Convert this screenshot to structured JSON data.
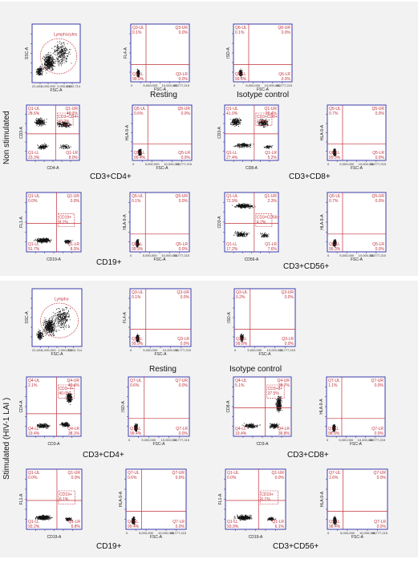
{
  "panels": {
    "top": {
      "side_label": "Non stimulated",
      "captions": [
        "Resting",
        "Isotype control",
        "CD3+CD4+",
        "CD3+CD8+",
        "CD19+",
        "CD3+CD56+"
      ],
      "plots": [
        {
          "xlabel": "FSC-A",
          "ylabel": "SSC-A",
          "gate": "Lymphocytes",
          "quads": [],
          "xticks": [
            "22,404",
            "1,000,000",
            "2,000,000",
            "3,102,714"
          ],
          "cloud": "lymph"
        },
        {
          "xlabel": "FSC-A",
          "ylabel": "FL4-A",
          "quads": [
            "Q3-UL",
            "0.1%",
            "Q3-UR",
            "0.0%",
            "Q3-LL",
            "99.9%",
            "Q3-LR",
            "0.0%"
          ],
          "xticks": [
            "0",
            "5,000,000",
            "10,000,000",
            "16,777,215"
          ],
          "cloud": "blob"
        },
        {
          "xlabel": "FSC-A",
          "ylabel": "ISO-A",
          "quads": [
            "Q6-UL",
            "0.1%",
            "Q6-UR",
            "0.0%",
            "Q6-LL",
            "99.9%",
            "Q6-LR",
            "0.0%"
          ],
          "xticks": [
            "0",
            "5,000,000",
            "10,000,000",
            "16,777,215"
          ],
          "cloud": "blob"
        },
        {
          "xlabel": "CD4-A",
          "ylabel": "CD3-A",
          "gate": "CD3+CD4+",
          "quads": [
            "Q1-UL",
            "28.6%",
            "Q1-UR",
            "40.1%",
            "Q1-LL",
            "23.3%",
            "Q1-LR",
            "8.0%"
          ],
          "xticks": [],
          "cloud": "cd4",
          "gatepct": "40.2%"
        },
        {
          "xlabel": "FSC-A",
          "ylabel": "HLA-9-A",
          "quads": [
            "Q5-UL",
            "0.6%",
            "Q5-UR",
            "0.0%",
            "Q5-LL",
            "99.4%",
            "Q5-LR",
            "0.0%"
          ],
          "xticks": [
            "0",
            "5,000,000",
            "10,000,000",
            "16,777,215"
          ],
          "cloud": "blob"
        },
        {
          "xlabel": "CD8-A",
          "ylabel": "CD3-A",
          "gate": "CD3+CD8+",
          "quads": [
            "Q1-UL",
            "41.0%",
            "Q1-UR",
            "26.4%",
            "Q1-LL",
            "27.4%",
            "Q1-LR",
            "5.2%"
          ],
          "xticks": [],
          "cloud": "cd8",
          "gatepct": "26.4%"
        },
        {
          "xlabel": "FSC-A",
          "ylabel": "HLA-9-A",
          "quads": [
            "Q5-UL",
            "0.7%",
            "Q5-UR",
            "0.0%",
            "Q5-LL",
            "99.3%",
            "Q5-LR",
            "0.0%"
          ],
          "xticks": [
            "0",
            "5,000,000",
            "10,000,000",
            "16,777,215"
          ],
          "cloud": "blob"
        },
        {
          "xlabel": "CD19-A",
          "ylabel": "FL1-A",
          "gate": "CD19+",
          "quads": [
            "Q1-UL",
            "0.0%",
            "Q1-UR",
            "0.0%",
            "Q1-LL",
            "91.7%",
            "Q1-LR",
            "8.3%"
          ],
          "xticks": [],
          "cloud": "cd19",
          "gatepct": "8.1%"
        },
        {
          "xlabel": "FSC-A",
          "ylabel": "HLA-9-A",
          "quads": [
            "Q5-UL",
            "0.1%",
            "Q5-UR",
            "0.0%",
            "Q5-LL",
            "99.9%",
            "Q5-LR",
            "0.0%"
          ],
          "xticks": [
            "0",
            "5,000,000",
            "10,000,000",
            "16,777,215"
          ],
          "cloud": "blob"
        },
        {
          "xlabel": "CD56-A",
          "ylabel": "CD3-A",
          "gate": "CD3+CD56+",
          "quads": [
            "Q1-UL",
            "72.9%",
            "Q1-UR",
            "2.3%",
            "Q1-LL",
            "17.2%",
            "Q1-LR",
            "7.6%"
          ],
          "xticks": [],
          "cloud": "cd56",
          "gatepct": "4.2%"
        },
        {
          "xlabel": "FSC-A",
          "ylabel": "HLA-9-A",
          "quads": [
            "Q5-UL",
            "0.7%",
            "Q5-UR",
            "0.0%",
            "Q5-LL",
            "99.3%",
            "Q5-LR",
            "0.0%"
          ],
          "xticks": [
            "0",
            "5,000,000",
            "10,000,000",
            "16,777,215"
          ],
          "cloud": "blob"
        }
      ]
    },
    "bottom": {
      "side_label": "Stimulated (HIV-1 LAI )",
      "captions": [
        "Resting",
        "Isotype control",
        "CD3+CD4+",
        "CD3+CD8+",
        "CD19+",
        "CD3+CD56+"
      ],
      "plots": [
        {
          "xlabel": "FSC-A",
          "ylabel": "SSC-A",
          "gate": "Lympho",
          "quads": [],
          "xticks": [
            "22,404",
            "1,000,000",
            "2,000,000",
            "3,102,714"
          ],
          "cloud": "lymph"
        },
        {
          "xlabel": "FSC-A",
          "ylabel": "FL4-A",
          "quads": [
            "Q3-UL",
            "0.1%",
            "Q3-UR",
            "0.0%",
            "Q3-LL",
            "99.9%",
            "Q3-LR",
            "0.0%"
          ],
          "xticks": [
            "0",
            "5,000,000",
            "10,000,000",
            "16,777,215"
          ],
          "cloud": "blob"
        },
        {
          "xlabel": "FSC-A",
          "ylabel": "ISO-A",
          "quads": [
            "Q3-UL",
            "0.2%",
            "Q3-UR",
            "0.0%",
            "Q3-LL",
            "99.8%",
            "Q3-LR",
            "0.0%"
          ],
          "xticks": [
            "0",
            "5,000,000",
            "10,000,000",
            "16,777,215"
          ],
          "cloud": "blob"
        },
        {
          "xlabel": "CD3-A",
          "ylabel": "CD4-A",
          "gate": "CD3+4+",
          "quads": [
            "Q4-UL",
            "2.1%",
            "Q4-UR",
            "40.4%",
            "Q4-LL",
            "19.4%",
            "Q4-LR",
            "38.1%"
          ],
          "xticks": [],
          "cloud": "s4",
          "gatepct": "40.0%"
        },
        {
          "xlabel": "FSC-A",
          "ylabel": "ISO-A",
          "quads": [
            "Q7-UL",
            "0.6%",
            "Q7-UR",
            "0.0%",
            "Q7-LL",
            "99.4%",
            "Q7-LR",
            "0.0%"
          ],
          "xticks": [
            "0",
            "5,000,000",
            "10,000,000",
            "16,777,215"
          ],
          "cloud": "blob"
        },
        {
          "xlabel": "CD3-A",
          "ylabel": "CD8-A",
          "gate": "CD3+8+",
          "quads": [
            "Q4-UL",
            "5.1%",
            "Q4-UR",
            "38.7%",
            "Q4-LL",
            "19.4%",
            "Q4-LR",
            "36.8%"
          ],
          "xticks": [],
          "cloud": "s8",
          "gatepct": "37.5%"
        },
        {
          "xlabel": "FSC-A",
          "ylabel": "HLA-9-A",
          "quads": [
            "Q7-UL",
            "1.1%",
            "Q7-UR",
            "0.0%",
            "Q7-LL",
            "98.9%",
            "Q7-LR",
            "0.0%"
          ],
          "xticks": [
            "0",
            "5,000,000",
            "10,000,000",
            "16,777,215"
          ],
          "cloud": "blob"
        },
        {
          "xlabel": "CD19-A",
          "ylabel": "FL1-A",
          "gate": "CD19+",
          "quads": [
            "Q1-UL",
            "0.0%",
            "Q1-UR",
            "0.0%",
            "Q1-LL",
            "93.2%",
            "Q1-LR",
            "6.8%"
          ],
          "xticks": [],
          "cloud": "cd19",
          "gatepct": "6.1%"
        },
        {
          "xlabel": "FSC-A",
          "ylabel": "HLA-9-A",
          "quads": [
            "Q7-UL",
            "0.6%",
            "Q7-UR",
            "0.0%",
            "Q7-LL",
            "99.4%",
            "Q7-LR",
            "0.0%"
          ],
          "xticks": [
            "0",
            "5,000,000",
            "10,000,000",
            "16,777,215"
          ],
          "cloud": "blob"
        },
        {
          "xlabel": "CD19-A",
          "ylabel": "FL1-A",
          "gate": "CD19+",
          "quads": [
            "Q1-UL",
            "0.0%",
            "Q1-UR",
            "0.0%",
            "Q1-LL",
            "93.9%",
            "Q1-LR",
            "6.1%"
          ],
          "xticks": [],
          "cloud": "cd19",
          "gatepct": "6.1%"
        },
        {
          "xlabel": "FSC-A",
          "ylabel": "HLA-9-A",
          "quads": [
            "Q7-UL",
            "1.6%",
            "Q7-UR",
            "0.0%",
            "Q7-LL",
            "98.4%",
            "Q7-LR",
            "0.0%"
          ],
          "xticks": [
            "0",
            "5,000,000",
            "10,000,000",
            "16,777,215"
          ],
          "cloud": "blob"
        }
      ]
    }
  },
  "colors": {
    "axis": "#3a3aa8",
    "quad": "#c0303a",
    "dots": "#111111",
    "text": "#c0303a",
    "panel": "#f2f2f2"
  },
  "chart_data": {
    "type": "scatter",
    "description_type": "flow cytometry dot plots with quadrant gates",
    "quadrant_percentages_non_stimulated": {
      "Resting": {
        "UL": 0.1,
        "UR": 0.0,
        "LL": 99.9,
        "LR": 0.0
      },
      "Isotype control": {
        "UL": 0.1,
        "UR": 0.0,
        "LL": 99.9,
        "LR": 0.0
      },
      "CD3+CD4+": {
        "UL": 28.6,
        "UR": 40.1,
        "LL": 23.3,
        "LR": 8.0
      },
      "CD3+CD8+": {
        "UL": 41.0,
        "UR": 26.4,
        "LL": 27.4,
        "LR": 5.2
      },
      "CD19+": {
        "UL": 0.0,
        "UR": 0.0,
        "LL": 91.7,
        "LR": 8.3
      },
      "CD3+CD56+": {
        "UL": 72.9,
        "UR": 2.3,
        "LL": 17.2,
        "LR": 7.6
      }
    },
    "quadrant_percentages_stimulated": {
      "Resting": {
        "UL": 0.1,
        "UR": 0.0,
        "LL": 99.9,
        "LR": 0.0
      },
      "Isotype control": {
        "UL": 0.2,
        "UR": 0.0,
        "LL": 99.8,
        "LR": 0.0
      },
      "CD3+CD4+": {
        "UL": 2.1,
        "UR": 40.4,
        "LL": 19.4,
        "LR": 38.1
      },
      "CD3+CD8+": {
        "UL": 5.1,
        "UR": 38.7,
        "LL": 19.4,
        "LR": 36.8
      },
      "CD19+": {
        "UL": 0.0,
        "UR": 0.0,
        "LL": 93.2,
        "LR": 6.8
      },
      "CD3+CD56+": {
        "UL": 0.0,
        "UR": 0.0,
        "LL": 93.9,
        "LR": 6.1
      }
    },
    "fsc_axis_range": [
      0,
      16777215
    ],
    "scatter_axis_range": [
      22404,
      3102714
    ]
  }
}
